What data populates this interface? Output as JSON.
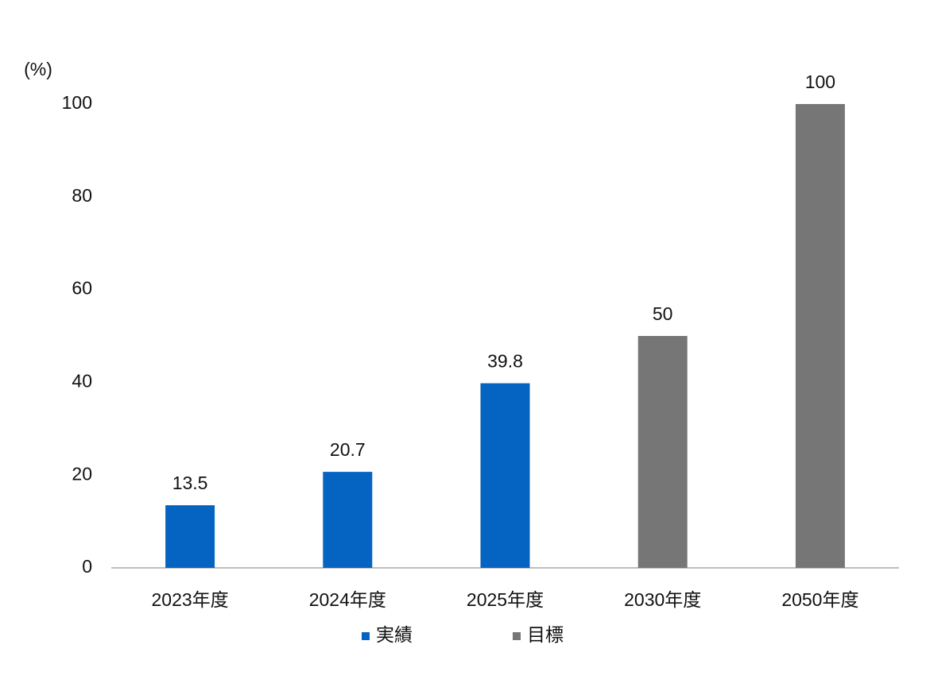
{
  "chart_data": {
    "type": "bar",
    "y_label": "(%)",
    "categories": [
      "2023年度",
      "2024年度",
      "2025年度",
      "2030年度",
      "2050年度"
    ],
    "series": [
      {
        "name": "実績",
        "color": "#0563c1",
        "values": [
          13.5,
          20.7,
          39.8,
          null,
          null
        ]
      },
      {
        "name": "目標",
        "color": "#767676",
        "values": [
          null,
          null,
          null,
          50,
          100
        ]
      }
    ],
    "ylim": [
      0,
      100
    ],
    "yticks": [
      0,
      20,
      40,
      60,
      80,
      100
    ],
    "grid": false,
    "legend": "bottom"
  }
}
